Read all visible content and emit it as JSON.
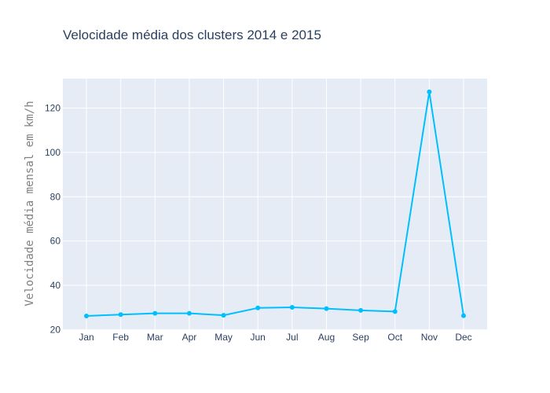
{
  "chart_data": {
    "type": "line",
    "title": "Velocidade média dos clusters 2014 e 2015",
    "xlabel": "",
    "ylabel": "Velocidade média mensal em km/h",
    "categories": [
      "Jan",
      "Feb",
      "Mar",
      "Apr",
      "May",
      "Jun",
      "Jul",
      "Aug",
      "Sep",
      "Oct",
      "Nov",
      "Dec"
    ],
    "series": [
      {
        "values": [
          26.2,
          26.8,
          27.4,
          27.4,
          26.5,
          29.8,
          30.1,
          29.5,
          28.7,
          28.2,
          127.3,
          26.3
        ]
      }
    ],
    "ylim": [
      19.8,
      133.3
    ],
    "yticks": [
      20,
      40,
      60,
      80,
      100,
      120
    ],
    "grid": true,
    "legend": "none",
    "colors": {
      "plot_background": "#e5ecf6",
      "grid": "#ffffff",
      "line": "#00bfff",
      "text": "#2a3f5f",
      "axis_title": "#7f7f7f"
    }
  }
}
